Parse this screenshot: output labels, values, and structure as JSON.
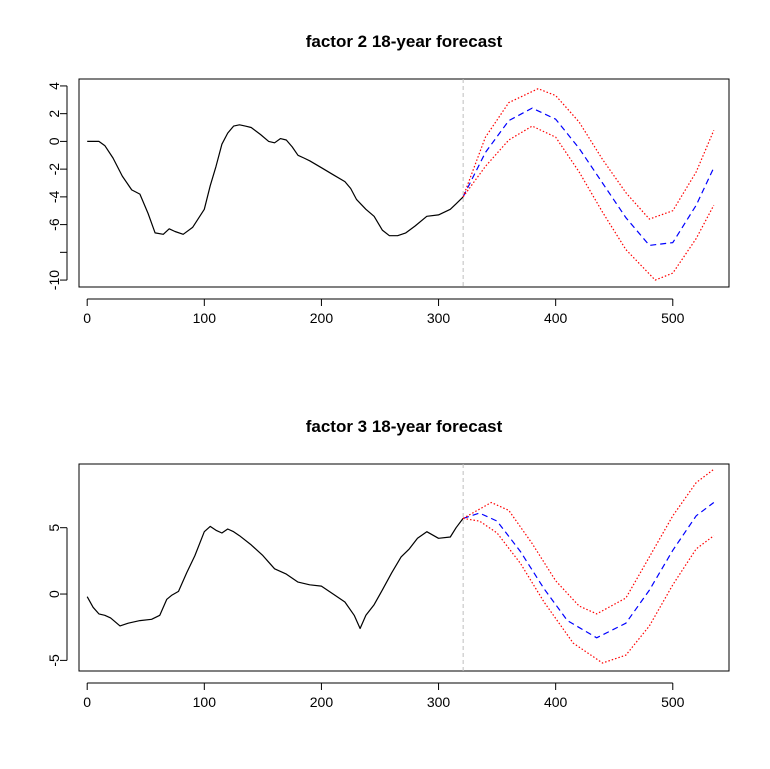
{
  "chart_data": [
    {
      "type": "line",
      "title": "factor 2 18-year forecast",
      "xlabel": "",
      "ylabel": "",
      "xlim": [
        -7,
        548
      ],
      "ylim": [
        -10.5,
        4.5
      ],
      "x_ticks": [
        0,
        100,
        200,
        300,
        400,
        500
      ],
      "x_tick_labels": [
        "0",
        "100",
        "200",
        "300",
        "400",
        "500"
      ],
      "y_ticks": [
        4,
        2,
        0,
        -2,
        -4,
        -6,
        -10
      ],
      "y_tick_labels": [
        "4",
        "2",
        "0",
        "-2",
        "-4",
        "-6",
        "-10"
      ],
      "y_unlabeled_ticks": [
        -8
      ],
      "forecast_origin": 321,
      "grid": false,
      "colors": {
        "history": "#000000",
        "forecast": "#0000ff",
        "interval": "#ff0000",
        "origin_line": "#bebebe"
      },
      "series": [
        {
          "role": "history",
          "style": "solid",
          "x": [
            0,
            10,
            15,
            22,
            30,
            38,
            45,
            52,
            58,
            65,
            70,
            75,
            82,
            90,
            100,
            105,
            110,
            115,
            120,
            125,
            130,
            135,
            140,
            148,
            155,
            160,
            165,
            170,
            175,
            180,
            185,
            190,
            200,
            210,
            220,
            225,
            230,
            238,
            245,
            252,
            258,
            265,
            272,
            280,
            290,
            300,
            310,
            315,
            321
          ],
          "y": [
            0,
            0,
            -0.3,
            -1.2,
            -2.5,
            -3.5,
            -3.8,
            -5.2,
            -6.6,
            -6.7,
            -6.3,
            -6.5,
            -6.7,
            -6.2,
            -4.9,
            -3.2,
            -1.8,
            -0.2,
            0.6,
            1.1,
            1.2,
            1.1,
            1.0,
            0.5,
            0.0,
            -0.1,
            0.2,
            0.1,
            -0.4,
            -1.0,
            -1.2,
            -1.4,
            -1.9,
            -2.4,
            -2.9,
            -3.4,
            -4.2,
            -4.9,
            -5.4,
            -6.4,
            -6.8,
            -6.8,
            -6.6,
            -6.1,
            -5.4,
            -5.3,
            -4.9,
            -4.5,
            -4.0
          ]
        },
        {
          "role": "forecast",
          "style": "dashed",
          "x": [
            321,
            340,
            360,
            380,
            400,
            420,
            440,
            460,
            480,
            500,
            520,
            535
          ],
          "y": [
            -4.0,
            -0.8,
            1.5,
            2.4,
            1.6,
            -0.5,
            -3.0,
            -5.5,
            -7.5,
            -7.3,
            -4.6,
            -1.9
          ]
        },
        {
          "role": "upper",
          "style": "dotted",
          "x": [
            321,
            340,
            360,
            385,
            400,
            420,
            440,
            460,
            480,
            500,
            520,
            535
          ],
          "y": [
            -4.0,
            0.3,
            2.8,
            3.8,
            3.3,
            1.4,
            -1.3,
            -3.7,
            -5.6,
            -5.0,
            -2.2,
            0.8
          ]
        },
        {
          "role": "lower",
          "style": "dotted",
          "x": [
            321,
            340,
            360,
            380,
            400,
            420,
            440,
            460,
            485,
            500,
            520,
            535
          ],
          "y": [
            -4.0,
            -1.8,
            0.1,
            1.1,
            0.3,
            -2.2,
            -5.1,
            -7.8,
            -10.0,
            -9.5,
            -7.0,
            -4.6
          ]
        }
      ]
    },
    {
      "type": "line",
      "title": "factor 3 18-year forecast",
      "xlabel": "",
      "ylabel": "",
      "xlim": [
        -7,
        548
      ],
      "ylim": [
        -5.8,
        9.8
      ],
      "x_ticks": [
        0,
        100,
        200,
        300,
        400,
        500
      ],
      "x_tick_labels": [
        "0",
        "100",
        "200",
        "300",
        "400",
        "500"
      ],
      "y_ticks": [
        5,
        0,
        -5
      ],
      "y_tick_labels": [
        "5",
        "0",
        "-5"
      ],
      "y_unlabeled_ticks": [],
      "forecast_origin": 321,
      "grid": false,
      "colors": {
        "history": "#000000",
        "forecast": "#0000ff",
        "interval": "#ff0000",
        "origin_line": "#bebebe"
      },
      "series": [
        {
          "role": "history",
          "style": "solid",
          "x": [
            0,
            5,
            10,
            15,
            20,
            28,
            35,
            45,
            55,
            62,
            68,
            72,
            78,
            85,
            92,
            100,
            105,
            110,
            115,
            120,
            125,
            130,
            140,
            150,
            155,
            160,
            170,
            180,
            190,
            200,
            210,
            220,
            228,
            233,
            238,
            245,
            252,
            260,
            268,
            275,
            282,
            290,
            300,
            310,
            315,
            321
          ],
          "y": [
            -0.2,
            -1.0,
            -1.5,
            -1.6,
            -1.8,
            -2.4,
            -2.2,
            -2.0,
            -1.9,
            -1.6,
            -0.4,
            -0.1,
            0.2,
            1.6,
            2.9,
            4.7,
            5.1,
            4.8,
            4.6,
            4.9,
            4.7,
            4.4,
            3.7,
            2.9,
            2.4,
            1.9,
            1.5,
            0.9,
            0.7,
            0.6,
            0.0,
            -0.6,
            -1.6,
            -2.6,
            -1.6,
            -0.8,
            0.3,
            1.6,
            2.8,
            3.4,
            4.2,
            4.7,
            4.2,
            4.3,
            5.0,
            5.7
          ]
        },
        {
          "role": "forecast",
          "style": "dashed",
          "x": [
            321,
            335,
            350,
            370,
            390,
            410,
            435,
            460,
            480,
            500,
            520,
            535
          ],
          "y": [
            5.7,
            6.1,
            5.5,
            3.2,
            0.4,
            -2.0,
            -3.3,
            -2.2,
            0.3,
            3.3,
            5.9,
            6.9
          ]
        },
        {
          "role": "upper",
          "style": "dotted",
          "x": [
            321,
            345,
            360,
            380,
            400,
            420,
            435,
            460,
            480,
            500,
            520,
            535
          ],
          "y": [
            5.7,
            6.9,
            6.3,
            3.8,
            1.0,
            -0.9,
            -1.5,
            -0.3,
            2.8,
            5.9,
            8.4,
            9.4
          ]
        },
        {
          "role": "lower",
          "style": "dotted",
          "x": [
            321,
            335,
            350,
            370,
            390,
            415,
            440,
            460,
            480,
            500,
            520,
            535
          ],
          "y": [
            5.7,
            5.5,
            4.6,
            2.3,
            -0.6,
            -3.7,
            -5.2,
            -4.6,
            -2.4,
            0.7,
            3.4,
            4.4
          ]
        }
      ]
    }
  ]
}
